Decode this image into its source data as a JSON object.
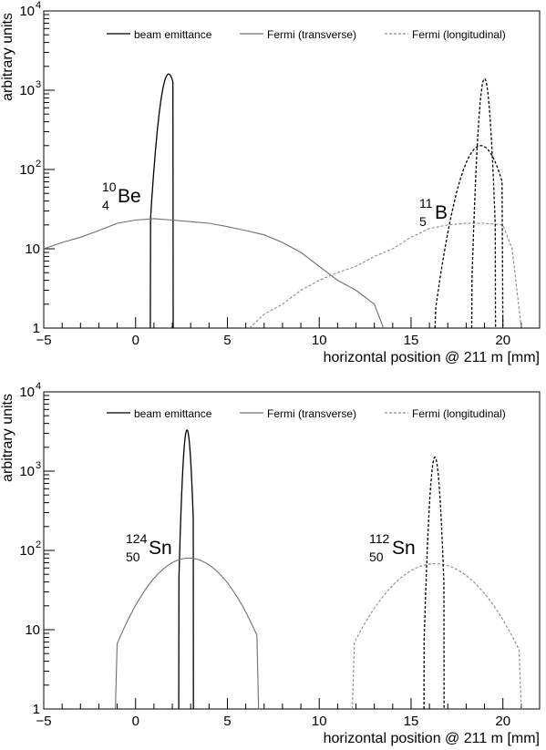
{
  "chart_data": [
    {
      "type": "line",
      "yscale": "log",
      "xlabel": "horizontal position @ 211 m [mm]",
      "ylabel": "arbitrary units",
      "xlim": [
        -5,
        22
      ],
      "ylim": [
        1,
        10000
      ],
      "x_ticks": [
        "−5",
        "0",
        "5",
        "10",
        "15",
        "20"
      ],
      "y_ticks": [
        {
          "base": "1",
          "exp": ""
        },
        {
          "base": "10",
          "exp": ""
        },
        {
          "base": "10",
          "exp": "2"
        },
        {
          "base": "10",
          "exp": "3"
        },
        {
          "base": "10",
          "exp": "4"
        }
      ],
      "legend": [
        "beam emittance",
        "Fermi (transverse)",
        "Fermi (longitudinal)"
      ],
      "annotations": [
        {
          "mass": "10",
          "charge": "4",
          "symbol": "Be"
        },
        {
          "mass": "11",
          "charge": "5",
          "symbol": "B"
        }
      ],
      "series": [
        {
          "name": "beam emittance",
          "style": "solid-black",
          "peaks": [
            {
              "center": 1.8,
              "peak": 1600,
              "sigma": 0.34,
              "xmin": 0.8,
              "xmax": 2.05
            }
          ]
        },
        {
          "name": "Fermi (transverse)",
          "style": "solid-gray",
          "x": [
            -5,
            -4,
            -3,
            -2,
            -1,
            0,
            1,
            2,
            3,
            4,
            5,
            6,
            7,
            8,
            9,
            10,
            11,
            12,
            13,
            13.5
          ],
          "y": [
            10,
            12,
            14,
            17,
            21,
            23,
            24,
            23,
            22,
            21,
            19,
            17,
            15,
            12,
            9,
            6,
            4,
            3,
            2,
            1
          ]
        },
        {
          "name": "Fermi (longitudinal)",
          "style": "dashed-gray",
          "x": [
            6.2,
            7,
            8,
            9,
            10,
            11,
            12,
            13,
            14,
            15,
            16,
            17,
            18,
            19,
            20,
            20.5,
            21
          ],
          "y": [
            1,
            1.5,
            2,
            3,
            4,
            5,
            6,
            8,
            10,
            14,
            18,
            20,
            21,
            21,
            20,
            10,
            1
          ]
        },
        {
          "name": "beam emittance",
          "style": "dashed-black",
          "peaks": [
            {
              "center": 19.0,
              "peak": 1400,
              "sigma": 0.2,
              "xmin": 18.3,
              "xmax": 19.6
            },
            {
              "center": 18.8,
              "peak": 200,
              "sigma": 0.8,
              "xmin": 16.3,
              "xmax": 20.0
            }
          ]
        }
      ]
    },
    {
      "type": "line",
      "yscale": "log",
      "xlabel": "horizontal position @ 211 m [mm]",
      "ylabel": "arbitrary units",
      "xlim": [
        -5,
        22
      ],
      "ylim": [
        1,
        10000
      ],
      "x_ticks": [
        "−5",
        "0",
        "5",
        "10",
        "15",
        "20"
      ],
      "y_ticks": [
        {
          "base": "1",
          "exp": ""
        },
        {
          "base": "10",
          "exp": ""
        },
        {
          "base": "10",
          "exp": "2"
        },
        {
          "base": "10",
          "exp": "3"
        },
        {
          "base": "10",
          "exp": "4"
        }
      ],
      "legend": [
        "beam emittance",
        "Fermi (transverse)",
        "Fermi (longitudinal)"
      ],
      "annotations": [
        {
          "mass": "124",
          "charge": "50",
          "symbol": "Sn"
        },
        {
          "mass": "112",
          "charge": "50",
          "symbol": "Sn"
        }
      ],
      "series": [
        {
          "name": "beam emittance",
          "style": "solid-black",
          "peaks": [
            {
              "center": 2.8,
              "peak": 3300,
              "sigma": 0.15,
              "xmin": 2.35,
              "xmax": 3.15
            }
          ]
        },
        {
          "name": "Fermi (transverse)",
          "style": "solid-gray",
          "peaks": [
            {
              "center": 2.9,
              "peak": 80,
              "sigma": 1.75,
              "xmin": -1.1,
              "xmax": 6.7
            }
          ]
        },
        {
          "name": "Fermi (longitudinal)",
          "style": "dashed-gray",
          "peaks": [
            {
              "center": 16.3,
              "peak": 68,
              "sigma": 2.05,
              "xmin": 11.8,
              "xmax": 21.0
            }
          ]
        },
        {
          "name": "beam emittance",
          "style": "dashed-black",
          "peaks": [
            {
              "center": 16.3,
              "peak": 1500,
              "sigma": 0.18,
              "xmin": 15.7,
              "xmax": 16.8
            }
          ]
        }
      ]
    }
  ]
}
